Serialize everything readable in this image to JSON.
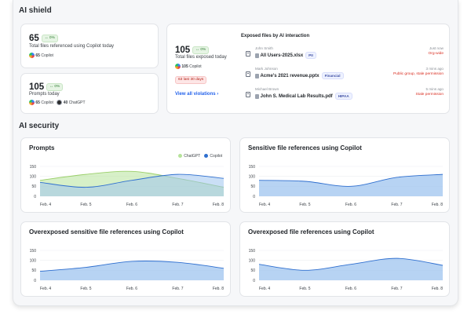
{
  "ai_shield": {
    "title": "AI shield",
    "card_files_referenced": {
      "count": "65",
      "chip": "↔ 0%",
      "label": "Total files referenced using Copilot today",
      "copilot_count": "65",
      "copilot_label": "Copilot"
    },
    "card_prompts": {
      "count": "105",
      "chip": "↔ 0%",
      "label": "Prompts today",
      "copilot_count": "65",
      "copilot_label": "Copilot",
      "chatgpt_count": "40",
      "chatgpt_label": "ChatGPT"
    },
    "card_exposed": {
      "count": "105",
      "chip": "↔ 0%",
      "label": "Total files exposed today",
      "copilot_count": "105",
      "copilot_label": "Copilot",
      "alert_chip": "63 last 30 days",
      "link": "View all violations",
      "link_arrow": "›",
      "list_title": "Exposed files by AI interaction",
      "files": [
        {
          "user": "John Smith",
          "name": "All Users-2025.xlsx",
          "tag": "PII",
          "time": "Just now",
          "status": "Org-wide"
        },
        {
          "user": "Mark Johnson",
          "name": "Acme's 2021 revenue.pptx",
          "tag": "Financial",
          "time": "3 mins ago",
          "status": "Public group, stale permission"
        },
        {
          "user": "Michael Brown",
          "name": "John S. Medical Lab Results.pdf",
          "tag": "HIPAA",
          "time": "5 mins ago",
          "status": "Stale permission"
        }
      ]
    }
  },
  "ai_security": {
    "title": "AI security"
  },
  "colors": {
    "chatgpt": "#b6e39a",
    "copilot": "#9fc4ef",
    "copilot_line": "#2f6fcf",
    "chatgpt_line": "#9bcf6a",
    "alert": "#d92d20"
  },
  "chart_data": [
    {
      "type": "area",
      "title": "Prompts",
      "categories": [
        "Feb. 4",
        "Feb. 5",
        "Feb. 6",
        "Feb. 7",
        "Feb. 8"
      ],
      "yticks": [
        "150",
        "100",
        "50",
        "0"
      ],
      "ylim": [
        0,
        150
      ],
      "legend": "top-right",
      "series": [
        {
          "name": "ChatGPT",
          "values": [
            80,
            110,
            125,
            90,
            45
          ],
          "color": "#b6e39a",
          "line": "#9bcf6a"
        },
        {
          "name": "Copilot",
          "values": [
            70,
            45,
            80,
            110,
            90
          ],
          "color": "#9fc4ef",
          "line": "#2f6fcf"
        }
      ]
    },
    {
      "type": "area",
      "title": "Sensitive file references using Copilot",
      "categories": [
        "Feb. 4",
        "Feb. 5",
        "Feb. 6",
        "Feb. 7",
        "Feb. 8"
      ],
      "yticks": [
        "150",
        "100",
        "50",
        "0"
      ],
      "ylim": [
        0,
        150
      ],
      "series": [
        {
          "values": [
            80,
            75,
            50,
            95,
            110
          ],
          "color": "#9fc4ef",
          "line": "#2f6fcf"
        }
      ]
    },
    {
      "type": "area",
      "title": "Overexposed sensitive file references using Copilot",
      "categories": [
        "Feb. 4",
        "Feb. 5",
        "Feb. 6",
        "Feb. 7",
        "Feb. 8"
      ],
      "yticks": [
        "150",
        "100",
        "50",
        "0"
      ],
      "ylim": [
        0,
        150
      ],
      "series": [
        {
          "values": [
            45,
            65,
            95,
            90,
            60
          ],
          "color": "#9fc4ef",
          "line": "#2f6fcf"
        }
      ]
    },
    {
      "type": "area",
      "title": "Overexposed file references using Copilot",
      "categories": [
        "Feb. 4",
        "Feb. 5",
        "Feb. 6",
        "Feb. 7",
        "Feb. 8"
      ],
      "yticks": [
        "150",
        "100",
        "50",
        "0"
      ],
      "ylim": [
        0,
        150
      ],
      "series": [
        {
          "values": [
            80,
            50,
            80,
            110,
            75
          ],
          "color": "#9fc4ef",
          "line": "#2f6fcf"
        }
      ]
    }
  ]
}
